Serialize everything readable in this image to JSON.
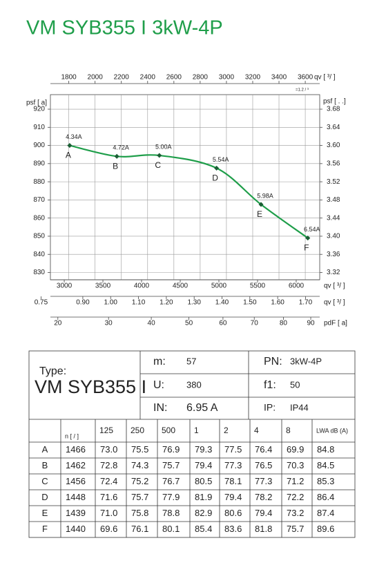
{
  "title": "VM SYB355 I 3kW-4P",
  "chart_data": {
    "type": "line",
    "color": "#1f9e4a",
    "marker_color": "#1a5e34",
    "grid": true,
    "x": [
      3070,
      3680,
      4230,
      4970,
      5545,
      6150
    ],
    "values": [
      900,
      894,
      894.5,
      887.5,
      867.5,
      849
    ],
    "point_labels": [
      "A",
      "B",
      "C",
      "D",
      "E",
      "F"
    ],
    "current_labels": [
      "4.34A",
      "4.72A",
      "5.00A",
      "5.54A",
      "5.98A",
      "6.54A"
    ],
    "xlabel": "qv [ ³/ ]",
    "xlim": [
      2821,
      6304
    ],
    "xticks": [
      3000,
      3500,
      4000,
      4500,
      5000,
      5500,
      6000
    ],
    "ylabel": "psf [ a]",
    "ylim": [
      826,
      928
    ],
    "yticks": [
      920,
      910,
      900,
      890,
      880,
      870,
      860,
      850,
      840,
      830
    ],
    "y2label": "psf [ . .]",
    "y2lim": [
      3.304,
      3.712
    ],
    "y2ticks": [
      3.68,
      3.64,
      {
        "value": 3.6,
        "label": "3.60"
      },
      3.56,
      3.52,
      3.48,
      3.44,
      {
        "value": 3.4,
        "label": "3.40"
      },
      3.36,
      3.32
    ],
    "top_axis": {
      "label": "qv [ ³/ ]",
      "note": "=1.2 / ³",
      "lim": [
        1660,
        3710
      ],
      "ticks": [
        1800,
        2000,
        2200,
        2400,
        2600,
        2800,
        3000,
        3200,
        3400,
        3600
      ]
    },
    "flow_axis": {
      "label": "qv [ ³/ ]",
      "lim": [
        0.7836,
        1.751
      ],
      "ticks": [
        0.75,
        {
          "value": 0.9,
          "label": "0.90"
        },
        {
          "value": 1,
          "label": "1.00"
        },
        {
          "value": 1.1,
          "label": "1.10"
        },
        {
          "value": 1.2,
          "label": "1.20"
        },
        {
          "value": 1.3,
          "label": "1.30"
        },
        {
          "value": 1.4,
          "label": "1.40"
        },
        {
          "value": 1.5,
          "label": "1.50"
        },
        {
          "value": 1.6,
          "label": "1.60"
        },
        {
          "value": 1.7,
          "label": "1.70"
        }
      ]
    },
    "pressure_axis": {
      "label": "pdF [ a]",
      "scale": "sqrt",
      "lim": [
        18.7,
        93.4
      ],
      "ticks": [
        20,
        30,
        40,
        50,
        60,
        70,
        80,
        90
      ]
    }
  },
  "spec": {
    "type_label": "Type:",
    "type": "VM SYB355 I",
    "m_label": "m:",
    "m": "57",
    "pn_label": "PN:",
    "pn": "3kW-4P",
    "u_label": "U:",
    "u": "380",
    "f_label": "f1:",
    "f": "50",
    "in_label": "IN:",
    "in": "6.95  A",
    "ip_label": "IP:",
    "ip": "IP44"
  },
  "table": {
    "header": [
      "n [ / ]",
      "125",
      "250",
      "500",
      "1",
      "2",
      "4",
      "8",
      "LWA dB (A)"
    ],
    "rows": [
      [
        "A",
        "1466",
        "73.0",
        "75.5",
        "76.9",
        "79.3",
        "77.5",
        "76.4",
        "69.9",
        "84.8"
      ],
      [
        "B",
        "1462",
        "72.8",
        "74.3",
        "75.7",
        "79.4",
        "77.3",
        "76.5",
        "70.3",
        "84.5"
      ],
      [
        "C",
        "1456",
        "72.4",
        "75.2",
        "76.7",
        "80.5",
        "78.1",
        "77.3",
        "71.2",
        "85.3"
      ],
      [
        "D",
        "1448",
        "71.6",
        "75.7",
        "77.9",
        "81.9",
        "79.4",
        "78.2",
        "72.2",
        "86.4"
      ],
      [
        "E",
        "1439",
        "71.0",
        "75.8",
        "78.8",
        "82.9",
        "80.6",
        "79.4",
        "73.2",
        "87.4"
      ],
      [
        "F",
        "1440",
        "69.6",
        "76.1",
        "80.1",
        "85.4",
        "83.6",
        "81.8",
        "75.7",
        "89.6"
      ]
    ]
  }
}
